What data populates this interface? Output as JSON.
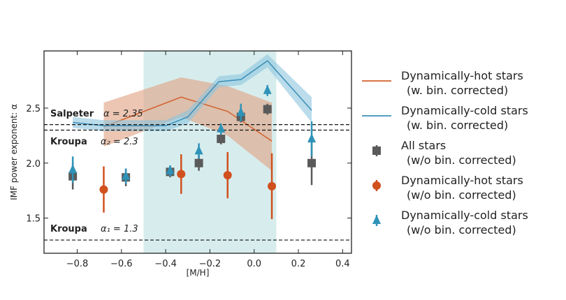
{
  "chart_data": {
    "type": "line",
    "xlabel": "[M/H]",
    "ylabel": "IMF power exponent: α",
    "xlim": [
      -0.95,
      0.44
    ],
    "ylim": [
      1.18,
      3.02
    ],
    "xticks": [
      -0.8,
      -0.6,
      -0.4,
      -0.2,
      0.0,
      0.2,
      0.4
    ],
    "xtick_labels": [
      "−0.8",
      "−0.6",
      "−0.4",
      "−0.2",
      "0.0",
      "0.2",
      "0.4"
    ],
    "yticks": [
      1.5,
      2.0,
      2.5
    ],
    "ytick_labels": [
      "1.5",
      "2.0",
      "2.5"
    ],
    "shaded_region": [
      -0.5,
      0.1
    ],
    "reference_lines": [
      {
        "label_name": "Salpeter",
        "label_expr": "α = 2.35",
        "y": 2.35
      },
      {
        "label_name": "Kroupa",
        "label_expr": "α₂ = 2.3",
        "y": 2.3
      },
      {
        "label_name": "Kroupa",
        "label_expr": "α₁ = 1.3",
        "y": 1.3
      }
    ],
    "series": [
      {
        "name": "Dynamically-hot stars",
        "sub": "(w. bin. corrected)",
        "kind": "band",
        "color": "#d2602e",
        "band_color": "#e0a080",
        "x": [
          -0.68,
          -0.33,
          -0.12,
          0.08
        ],
        "y": [
          2.33,
          2.6,
          2.47,
          2.2
        ],
        "lower": [
          2.15,
          2.42,
          2.25,
          1.93
        ],
        "upper": [
          2.55,
          2.78,
          2.7,
          2.55
        ]
      },
      {
        "name": "Dynamically-cold stars",
        "sub": "(w. bin. corrected)",
        "kind": "band",
        "color": "#3b8fb8",
        "band_color": "#8cc4de",
        "x": [
          -0.82,
          -0.68,
          -0.4,
          -0.3,
          -0.16,
          -0.06,
          0.06,
          0.26
        ],
        "y": [
          2.37,
          2.34,
          2.34,
          2.42,
          2.74,
          2.76,
          2.93,
          2.48
        ],
        "lower": [
          2.32,
          2.29,
          2.29,
          2.36,
          2.69,
          2.71,
          2.87,
          2.37
        ],
        "upper": [
          2.42,
          2.39,
          2.39,
          2.48,
          2.79,
          2.81,
          2.99,
          2.6
        ]
      },
      {
        "name": "All stars",
        "sub": "(w/o bin. corrected)",
        "kind": "square",
        "color": "#5a5a5a",
        "x": [
          -0.82,
          -0.58,
          -0.38,
          -0.25,
          -0.15,
          -0.06,
          0.06,
          0.26
        ],
        "y": [
          1.88,
          1.87,
          1.92,
          2.0,
          2.22,
          2.42,
          2.49,
          2.0
        ],
        "err": [
          0.12,
          0.08,
          0.05,
          0.07,
          0.05,
          0.05,
          0.05,
          0.2
        ]
      },
      {
        "name": "Dynamically-hot stars",
        "sub": "(w/o bin. corrected)",
        "kind": "circle",
        "color": "#d0501e",
        "x": [
          -0.68,
          -0.33,
          -0.12,
          0.08
        ],
        "y": [
          1.76,
          1.9,
          1.89,
          1.79
        ],
        "err": [
          0.21,
          0.18,
          0.21,
          0.3
        ]
      },
      {
        "name": "Dynamically-cold stars",
        "sub": "(w/o bin. corrected)",
        "kind": "triangle",
        "color": "#2f93b8",
        "x": [
          -0.82,
          -0.58,
          -0.38,
          -0.25,
          -0.15,
          -0.06,
          0.06,
          0.26
        ],
        "y": [
          1.94,
          1.88,
          1.93,
          2.11,
          2.31,
          2.46,
          2.66,
          2.22
        ],
        "err": [
          0.12,
          0.07,
          0.05,
          0.07,
          0.05,
          0.08,
          0.05,
          0.16
        ]
      }
    ],
    "legend_placement": "right"
  }
}
